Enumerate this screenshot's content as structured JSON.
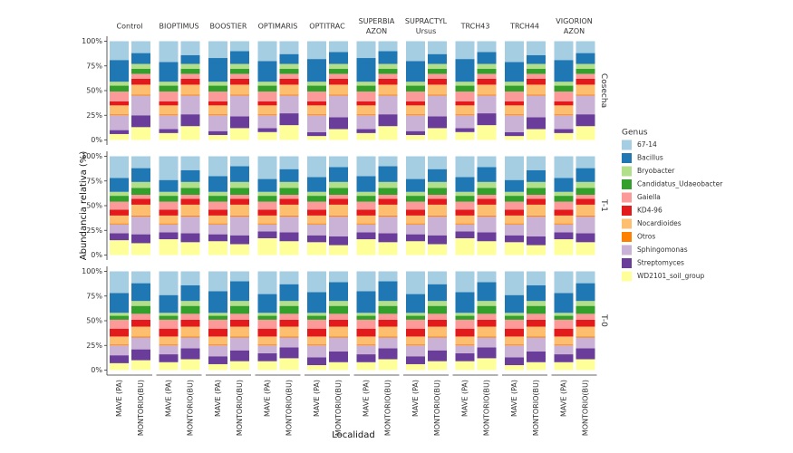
{
  "chart_data": {
    "type": "bar",
    "stacked": true,
    "x_label": "Localidad",
    "y_label": "Abundancia relativa (%)",
    "legend_title": "Genus",
    "categories": [
      "MAVE (PA)",
      "MONTORIO(BU)"
    ],
    "col_labels": [
      [
        "Control"
      ],
      [
        "BIOPTIMUS"
      ],
      [
        "BOOSTIER"
      ],
      [
        "OPTIMARIS"
      ],
      [
        "OPTITRAC"
      ],
      [
        "SUPERBIA",
        "AZON"
      ],
      [
        "SUPRACTYL",
        "Ursus"
      ],
      [
        "TRCH43"
      ],
      [
        "TRCH44"
      ],
      [
        "VIGORION",
        "AZON"
      ]
    ],
    "row_labels": [
      "Cosecha",
      "T-1",
      "T-0"
    ],
    "ylim": [
      0,
      100
    ],
    "yticks": [
      {
        "value": 0,
        "label": "0%"
      },
      {
        "value": 25,
        "label": "25%"
      },
      {
        "value": 50,
        "label": "50%"
      },
      {
        "value": 75,
        "label": "75%"
      },
      {
        "value": 100,
        "label": "100%"
      }
    ],
    "series": [
      {
        "name": "67-14",
        "color": "#a6cee3"
      },
      {
        "name": "Bacillus",
        "color": "#1f78b4"
      },
      {
        "name": "Bryobacter",
        "color": "#b2df8a"
      },
      {
        "name": "Candidatus_Udaeobacter",
        "color": "#33a02c"
      },
      {
        "name": "Gaiella",
        "color": "#fb9a99"
      },
      {
        "name": "KD4-96",
        "color": "#e31a1c"
      },
      {
        "name": "Nocardioides",
        "color": "#fdbf6f"
      },
      {
        "name": "Otros",
        "color": "#ff7f00"
      },
      {
        "name": "Sphingomonas",
        "color": "#cab2d6"
      },
      {
        "name": "Streptomyces",
        "color": "#6a3d9a"
      },
      {
        "name": "WD2101_soil_group",
        "color": "#ffff99"
      }
    ],
    "panels": [
      [
        [
          [
            19,
            22,
            4,
            6,
            10,
            4,
            9,
            1,
            15,
            4,
            6
          ],
          [
            12,
            11,
            5,
            5,
            5,
            6,
            10,
            1,
            20,
            12,
            13
          ]
        ],
        [
          [
            21,
            20,
            4,
            6,
            10,
            4,
            9,
            1,
            14,
            4,
            7
          ],
          [
            14,
            9,
            5,
            5,
            5,
            6,
            10,
            1,
            19,
            12,
            14
          ]
        ],
        [
          [
            17,
            24,
            4,
            6,
            10,
            4,
            9,
            1,
            16,
            4,
            5
          ],
          [
            10,
            13,
            5,
            5,
            5,
            6,
            10,
            1,
            21,
            12,
            12
          ]
        ],
        [
          [
            20,
            21,
            4,
            6,
            10,
            4,
            9,
            1,
            13,
            4,
            8
          ],
          [
            13,
            10,
            5,
            5,
            5,
            6,
            10,
            1,
            18,
            12,
            15
          ]
        ],
        [
          [
            18,
            23,
            4,
            6,
            10,
            4,
            9,
            1,
            17,
            4,
            4
          ],
          [
            11,
            12,
            5,
            5,
            5,
            6,
            10,
            1,
            22,
            12,
            11
          ]
        ],
        [
          [
            17,
            24,
            4,
            6,
            10,
            4,
            9,
            1,
            14,
            4,
            7
          ],
          [
            10,
            13,
            5,
            5,
            5,
            6,
            10,
            1,
            19,
            12,
            14
          ]
        ],
        [
          [
            20,
            21,
            4,
            6,
            10,
            4,
            9,
            1,
            16,
            4,
            5
          ],
          [
            13,
            10,
            5,
            5,
            5,
            6,
            10,
            1,
            21,
            12,
            12
          ]
        ],
        [
          [
            18,
            23,
            4,
            6,
            10,
            4,
            9,
            1,
            13,
            4,
            8
          ],
          [
            11,
            12,
            5,
            5,
            5,
            6,
            10,
            1,
            18,
            12,
            15
          ]
        ],
        [
          [
            21,
            20,
            4,
            6,
            10,
            4,
            9,
            1,
            17,
            4,
            4
          ],
          [
            14,
            9,
            5,
            5,
            5,
            6,
            10,
            1,
            22,
            12,
            11
          ]
        ],
        [
          [
            19,
            22,
            4,
            6,
            10,
            4,
            9,
            1,
            14,
            4,
            7
          ],
          [
            12,
            11,
            5,
            5,
            5,
            6,
            10,
            1,
            19,
            12,
            14
          ]
        ]
      ],
      [
        [
          [
            22,
            14,
            4,
            6,
            8,
            6,
            8,
            1,
            9,
            7,
            15
          ],
          [
            12,
            14,
            6,
            7,
            4,
            6,
            11,
            1,
            18,
            9,
            12
          ]
        ],
        [
          [
            24,
            12,
            4,
            6,
            8,
            6,
            8,
            1,
            8,
            7,
            16
          ],
          [
            14,
            12,
            6,
            7,
            4,
            6,
            11,
            1,
            17,
            9,
            13
          ]
        ],
        [
          [
            20,
            16,
            4,
            6,
            8,
            6,
            8,
            1,
            10,
            7,
            14
          ],
          [
            10,
            16,
            6,
            7,
            4,
            6,
            11,
            1,
            19,
            9,
            11
          ]
        ],
        [
          [
            23,
            13,
            4,
            6,
            8,
            6,
            8,
            1,
            7,
            7,
            17
          ],
          [
            13,
            13,
            6,
            7,
            4,
            6,
            11,
            1,
            16,
            9,
            14
          ]
        ],
        [
          [
            21,
            15,
            4,
            6,
            8,
            6,
            8,
            1,
            11,
            7,
            13
          ],
          [
            11,
            15,
            6,
            7,
            4,
            6,
            11,
            1,
            20,
            9,
            10
          ]
        ],
        [
          [
            20,
            16,
            4,
            6,
            8,
            6,
            8,
            1,
            8,
            7,
            16
          ],
          [
            10,
            16,
            6,
            7,
            4,
            6,
            11,
            1,
            17,
            9,
            13
          ]
        ],
        [
          [
            23,
            13,
            4,
            6,
            8,
            6,
            8,
            1,
            10,
            7,
            14
          ],
          [
            13,
            13,
            6,
            7,
            4,
            6,
            11,
            1,
            19,
            9,
            11
          ]
        ],
        [
          [
            21,
            15,
            4,
            6,
            8,
            6,
            8,
            1,
            7,
            7,
            17
          ],
          [
            11,
            15,
            6,
            7,
            4,
            6,
            11,
            1,
            16,
            9,
            14
          ]
        ],
        [
          [
            24,
            12,
            4,
            6,
            8,
            6,
            8,
            1,
            11,
            7,
            13
          ],
          [
            14,
            12,
            6,
            7,
            4,
            6,
            11,
            1,
            20,
            9,
            10
          ]
        ],
        [
          [
            22,
            14,
            4,
            6,
            8,
            6,
            8,
            1,
            8,
            7,
            16
          ],
          [
            12,
            14,
            6,
            7,
            4,
            6,
            11,
            1,
            17,
            9,
            13
          ]
        ]
      ],
      [
        [
          [
            22,
            20,
            3,
            4,
            9,
            8,
            8,
            1,
            10,
            8,
            7
          ],
          [
            12,
            18,
            5,
            8,
            6,
            7,
            10,
            1,
            12,
            11,
            10
          ]
        ],
        [
          [
            24,
            18,
            3,
            4,
            9,
            8,
            8,
            1,
            9,
            8,
            8
          ],
          [
            14,
            16,
            5,
            8,
            6,
            7,
            10,
            1,
            11,
            11,
            11
          ]
        ],
        [
          [
            20,
            22,
            3,
            4,
            9,
            8,
            8,
            1,
            11,
            8,
            6
          ],
          [
            10,
            20,
            5,
            8,
            6,
            7,
            10,
            1,
            13,
            11,
            9
          ]
        ],
        [
          [
            23,
            19,
            3,
            4,
            9,
            8,
            8,
            1,
            8,
            8,
            9
          ],
          [
            13,
            17,
            5,
            8,
            6,
            7,
            10,
            1,
            10,
            11,
            12
          ]
        ],
        [
          [
            21,
            21,
            3,
            4,
            9,
            8,
            8,
            1,
            12,
            8,
            5
          ],
          [
            11,
            19,
            5,
            8,
            6,
            7,
            10,
            1,
            14,
            11,
            8
          ]
        ],
        [
          [
            20,
            22,
            3,
            4,
            9,
            8,
            8,
            1,
            9,
            8,
            8
          ],
          [
            10,
            20,
            5,
            8,
            6,
            7,
            10,
            1,
            11,
            11,
            11
          ]
        ],
        [
          [
            23,
            19,
            3,
            4,
            9,
            8,
            8,
            1,
            11,
            8,
            6
          ],
          [
            13,
            17,
            5,
            8,
            6,
            7,
            10,
            1,
            13,
            11,
            9
          ]
        ],
        [
          [
            21,
            21,
            3,
            4,
            9,
            8,
            8,
            1,
            8,
            8,
            9
          ],
          [
            11,
            19,
            5,
            8,
            6,
            7,
            10,
            1,
            10,
            11,
            12
          ]
        ],
        [
          [
            24,
            18,
            3,
            4,
            9,
            8,
            8,
            1,
            12,
            8,
            5
          ],
          [
            14,
            16,
            5,
            8,
            6,
            7,
            10,
            1,
            14,
            11,
            8
          ]
        ],
        [
          [
            22,
            20,
            3,
            4,
            9,
            8,
            8,
            1,
            9,
            8,
            8
          ],
          [
            12,
            18,
            5,
            8,
            6,
            7,
            10,
            1,
            11,
            11,
            11
          ]
        ]
      ]
    ]
  }
}
